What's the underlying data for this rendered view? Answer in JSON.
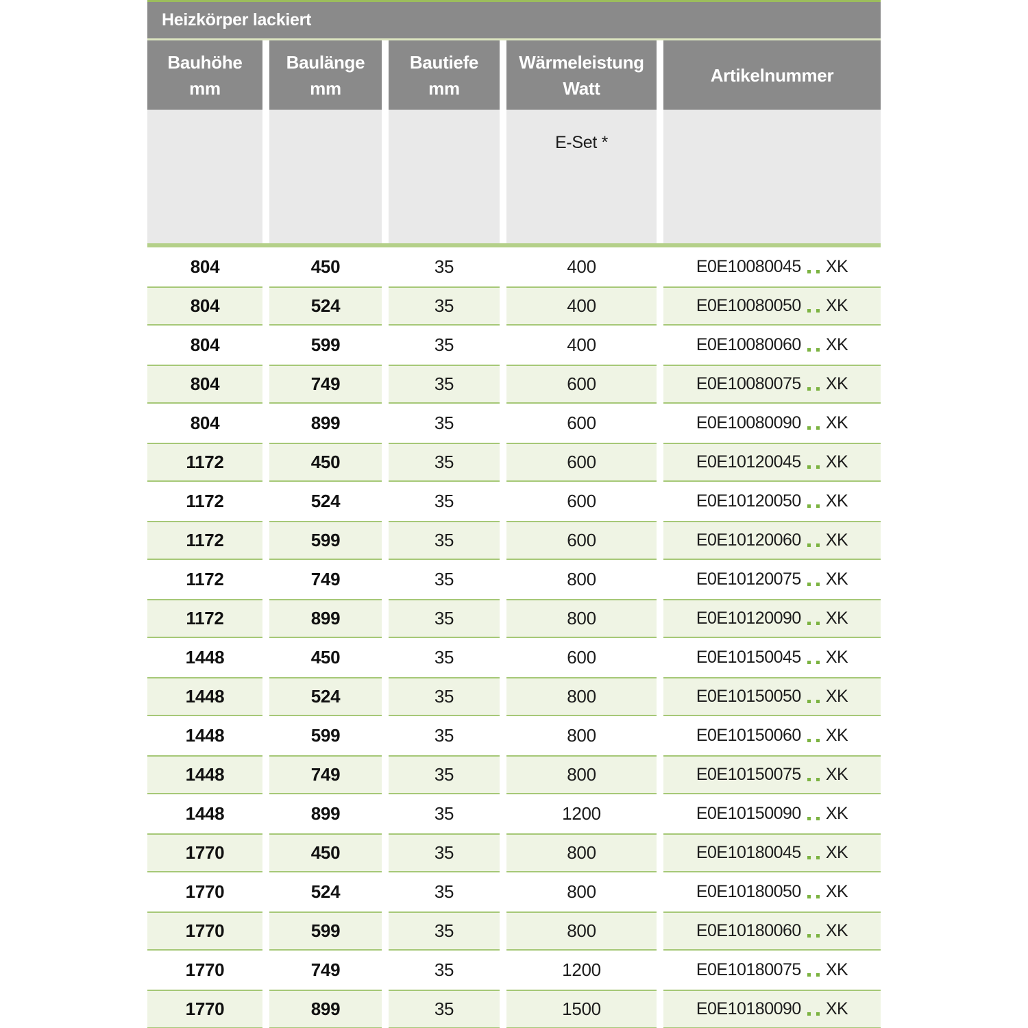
{
  "table": {
    "title": "Heizkörper lackiert",
    "columns": [
      {
        "line1": "Bauhöhe",
        "line2": "mm"
      },
      {
        "line1": "Baulänge",
        "line2": "mm"
      },
      {
        "line1": "Bautiefe",
        "line2": "mm"
      },
      {
        "line1": "Wärmeleistung",
        "line2": "Watt"
      },
      {
        "line1": "Artikelnummer",
        "line2": ""
      }
    ],
    "subheader_note": "E-Set *",
    "rows": [
      {
        "bauhoehe": "804",
        "baulaenge": "450",
        "bautiefe": "35",
        "watt": "400",
        "artikel_prefix": "E0E10080045",
        "artikel_dots": "..",
        "artikel_suffix": "XK"
      },
      {
        "bauhoehe": "804",
        "baulaenge": "524",
        "bautiefe": "35",
        "watt": "400",
        "artikel_prefix": "E0E10080050",
        "artikel_dots": "..",
        "artikel_suffix": "XK"
      },
      {
        "bauhoehe": "804",
        "baulaenge": "599",
        "bautiefe": "35",
        "watt": "400",
        "artikel_prefix": "E0E10080060",
        "artikel_dots": "..",
        "artikel_suffix": "XK"
      },
      {
        "bauhoehe": "804",
        "baulaenge": "749",
        "bautiefe": "35",
        "watt": "600",
        "artikel_prefix": "E0E10080075",
        "artikel_dots": "..",
        "artikel_suffix": "XK"
      },
      {
        "bauhoehe": "804",
        "baulaenge": "899",
        "bautiefe": "35",
        "watt": "600",
        "artikel_prefix": "E0E10080090",
        "artikel_dots": "..",
        "artikel_suffix": "XK"
      },
      {
        "bauhoehe": "1172",
        "baulaenge": "450",
        "bautiefe": "35",
        "watt": "600",
        "artikel_prefix": "E0E10120045",
        "artikel_dots": "..",
        "artikel_suffix": "XK"
      },
      {
        "bauhoehe": "1172",
        "baulaenge": "524",
        "bautiefe": "35",
        "watt": "600",
        "artikel_prefix": "E0E10120050",
        "artikel_dots": "..",
        "artikel_suffix": "XK"
      },
      {
        "bauhoehe": "1172",
        "baulaenge": "599",
        "bautiefe": "35",
        "watt": "600",
        "artikel_prefix": "E0E10120060",
        "artikel_dots": "..",
        "artikel_suffix": "XK"
      },
      {
        "bauhoehe": "1172",
        "baulaenge": "749",
        "bautiefe": "35",
        "watt": "800",
        "artikel_prefix": "E0E10120075",
        "artikel_dots": "..",
        "artikel_suffix": "XK"
      },
      {
        "bauhoehe": "1172",
        "baulaenge": "899",
        "bautiefe": "35",
        "watt": "800",
        "artikel_prefix": "E0E10120090",
        "artikel_dots": "..",
        "artikel_suffix": "XK"
      },
      {
        "bauhoehe": "1448",
        "baulaenge": "450",
        "bautiefe": "35",
        "watt": "600",
        "artikel_prefix": "E0E10150045",
        "artikel_dots": "..",
        "artikel_suffix": "XK"
      },
      {
        "bauhoehe": "1448",
        "baulaenge": "524",
        "bautiefe": "35",
        "watt": "800",
        "artikel_prefix": "E0E10150050",
        "artikel_dots": "..",
        "artikel_suffix": "XK"
      },
      {
        "bauhoehe": "1448",
        "baulaenge": "599",
        "bautiefe": "35",
        "watt": "800",
        "artikel_prefix": "E0E10150060",
        "artikel_dots": "..",
        "artikel_suffix": "XK"
      },
      {
        "bauhoehe": "1448",
        "baulaenge": "749",
        "bautiefe": "35",
        "watt": "800",
        "artikel_prefix": "E0E10150075",
        "artikel_dots": "..",
        "artikel_suffix": "XK"
      },
      {
        "bauhoehe": "1448",
        "baulaenge": "899",
        "bautiefe": "35",
        "watt": "1200",
        "artikel_prefix": "E0E10150090",
        "artikel_dots": "..",
        "artikel_suffix": "XK"
      },
      {
        "bauhoehe": "1770",
        "baulaenge": "450",
        "bautiefe": "35",
        "watt": "800",
        "artikel_prefix": "E0E10180045",
        "artikel_dots": "..",
        "artikel_suffix": "XK"
      },
      {
        "bauhoehe": "1770",
        "baulaenge": "524",
        "bautiefe": "35",
        "watt": "800",
        "artikel_prefix": "E0E10180050",
        "artikel_dots": "..",
        "artikel_suffix": "XK"
      },
      {
        "bauhoehe": "1770",
        "baulaenge": "599",
        "bautiefe": "35",
        "watt": "800",
        "artikel_prefix": "E0E10180060",
        "artikel_dots": "..",
        "artikel_suffix": "XK"
      },
      {
        "bauhoehe": "1770",
        "baulaenge": "749",
        "bautiefe": "35",
        "watt": "1200",
        "artikel_prefix": "E0E10180075",
        "artikel_dots": "..",
        "artikel_suffix": "XK"
      },
      {
        "bauhoehe": "1770",
        "baulaenge": "899",
        "bautiefe": "35",
        "watt": "1500",
        "artikel_prefix": "E0E10180090",
        "artikel_dots": "..",
        "artikel_suffix": "XK"
      }
    ]
  },
  "colors": {
    "header-gray": "#8a8a8a",
    "subheader-gray": "#e9e9e9",
    "top-line-green": "#9cbd5c",
    "pale-line-green": "#dce5c0",
    "bar-green": "#b4d089",
    "row-green": "#eff4e4",
    "row-border-green": "#a6c877",
    "dot-green": "#7cb342",
    "text-dark": "#1c1c1c"
  }
}
